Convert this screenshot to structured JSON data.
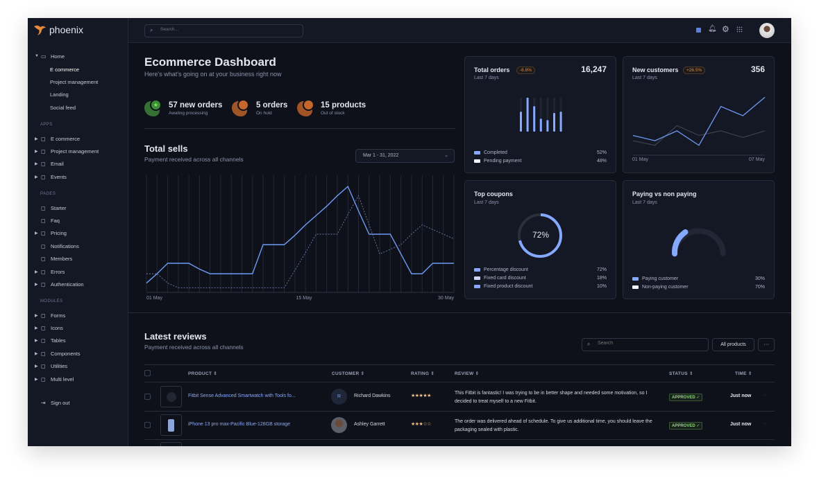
{
  "brand": {
    "name": "phoenix",
    "logo_color": "#e98a3b"
  },
  "topbar": {
    "search_placeholder": "Search...",
    "icons": [
      "theme-toggle-icon",
      "bell-icon",
      "gear-icon",
      "grid-icon",
      "avatar"
    ]
  },
  "sidebar": {
    "home": {
      "label": "Home",
      "children": [
        "E commerce",
        "Project management",
        "Landing",
        "Social feed"
      ]
    },
    "sections": [
      {
        "title": "APPS",
        "items": [
          {
            "label": "E commerce",
            "icon": "cart-icon",
            "expandable": true
          },
          {
            "label": "Project management",
            "icon": "clipboard-icon",
            "expandable": true
          },
          {
            "label": "Email",
            "icon": "mail-icon",
            "expandable": true
          },
          {
            "label": "Events",
            "icon": "clipboard-icon",
            "expandable": true
          }
        ]
      },
      {
        "title": "PAGES",
        "items": [
          {
            "label": "Starter",
            "icon": "compass-icon",
            "expandable": false
          },
          {
            "label": "Faq",
            "icon": "help-icon",
            "expandable": false
          },
          {
            "label": "Pricing",
            "icon": "tag-icon",
            "expandable": true
          },
          {
            "label": "Notifications",
            "icon": "bell-icon",
            "expandable": false
          },
          {
            "label": "Members",
            "icon": "users-icon",
            "expandable": false
          },
          {
            "label": "Errors",
            "icon": "alert-icon",
            "expandable": true
          },
          {
            "label": "Authentication",
            "icon": "lock-icon",
            "expandable": true
          }
        ]
      },
      {
        "title": "MODULES",
        "items": [
          {
            "label": "Forms",
            "icon": "file-icon",
            "expandable": true
          },
          {
            "label": "Icons",
            "icon": "grid-icon",
            "expandable": true
          },
          {
            "label": "Tables",
            "icon": "columns-icon",
            "expandable": true
          },
          {
            "label": "Components",
            "icon": "package-icon",
            "expandable": true
          },
          {
            "label": "Utilities",
            "icon": "tool-icon",
            "expandable": true
          },
          {
            "label": "Multi level",
            "icon": "layers-icon",
            "expandable": true
          }
        ]
      }
    ],
    "sign_out": "Sign out"
  },
  "header": {
    "title": "Ecommerce Dashboard",
    "subtitle": "Here's what's going on at your business right now"
  },
  "stats": [
    {
      "value": "57 new orders",
      "label": "Awating processing",
      "color": "#3d8a3a"
    },
    {
      "value": "5 orders",
      "label": "On hold",
      "color": "#c5662a"
    },
    {
      "value": "15 products",
      "label": "Out of stock",
      "color": "#c5662a"
    }
  ],
  "total_sells": {
    "title": "Total sells",
    "subtitle": "Payment received across all channels",
    "date_range": "Mar 1 - 31, 2022"
  },
  "chart_data": [
    {
      "type": "line",
      "x": [
        1,
        2,
        3,
        4,
        5,
        6,
        7,
        8,
        9,
        10,
        11,
        12,
        13,
        14,
        15,
        16,
        17,
        18,
        19,
        20,
        21,
        22,
        23,
        24,
        25,
        26,
        27,
        28,
        29,
        30
      ],
      "x_tick_labels": [
        "01 May",
        "15 May",
        "30 May"
      ],
      "ylim": [
        0,
        100
      ],
      "grid": "vertical",
      "series": [
        {
          "style": "solid",
          "color": "#6e9cf5",
          "values": [
            8,
            16,
            25,
            25,
            25,
            20,
            16,
            16,
            16,
            16,
            16,
            41,
            41,
            41,
            49,
            58,
            66,
            74,
            83,
            91,
            70,
            50,
            50,
            50,
            33,
            16,
            16,
            25,
            25,
            25
          ]
        },
        {
          "style": "dashed",
          "color": "#6a7ea8",
          "values": [
            16,
            16,
            8,
            4,
            4,
            4,
            4,
            4,
            4,
            4,
            4,
            4,
            4,
            4,
            19,
            34,
            50,
            50,
            50,
            67,
            83,
            58,
            33,
            37,
            41,
            50,
            58,
            54,
            50,
            46
          ]
        }
      ]
    },
    {
      "type": "bar",
      "title": "Total orders",
      "values": [
        59,
        100,
        75,
        38,
        34,
        55,
        59
      ],
      "ylim": [
        0,
        100
      ]
    },
    {
      "type": "line",
      "title": "New customers",
      "x_tick_labels": [
        "01 May",
        "07 May"
      ],
      "ylim": [
        0,
        100
      ],
      "series": [
        {
          "color": "#6e9cf5",
          "values": [
            30,
            22,
            37,
            15,
            74,
            60,
            88
          ]
        },
        {
          "color": "#3a3f4c",
          "values": [
            22,
            15,
            45,
            30,
            37,
            27,
            37
          ]
        }
      ]
    },
    {
      "type": "pie",
      "title": "Top coupons",
      "center_label": "72%",
      "values": [
        72,
        18,
        10
      ]
    },
    {
      "type": "pie",
      "title": "Paying vs non paying",
      "values": [
        30,
        70
      ]
    }
  ],
  "cards": {
    "total_orders": {
      "title": "Total orders",
      "badge": "-6.8%",
      "value": "16,247",
      "period": "Last 7 days",
      "legend": [
        {
          "label": "Completed",
          "value": "52%",
          "color": "#85a9ff"
        },
        {
          "label": "Pending payment",
          "value": "48%",
          "color": "#eff2f6"
        }
      ]
    },
    "new_customers": {
      "title": "New customers",
      "badge": "+26.5%",
      "value": "356",
      "period": "Last 7 days",
      "x_start": "01 May",
      "x_end": "07 May"
    },
    "top_coupons": {
      "title": "Top coupons",
      "period": "Last 7 days",
      "center": "72%",
      "legend": [
        {
          "label": "Percentage discount",
          "value": "72%",
          "color": "#85a9ff"
        },
        {
          "label": "Fixed card discount",
          "value": "18%",
          "color": "#c9d6f5"
        },
        {
          "label": "Fixed product discount",
          "value": "10%",
          "color": "#85a9ff"
        }
      ]
    },
    "paying": {
      "title": "Paying vs non paying",
      "period": "Last 7 days",
      "legend": [
        {
          "label": "Paying customer",
          "value": "30%",
          "color": "#85a9ff"
        },
        {
          "label": "Non-paying customer",
          "value": "70%",
          "color": "#eff2f6"
        }
      ]
    }
  },
  "reviews": {
    "title": "Latest reviews",
    "subtitle": "Payment received across all channels",
    "search_placeholder": "Search",
    "filter_label": "All products",
    "more_label": "···",
    "columns": [
      "PRODUCT",
      "CUSTOMER",
      "RATING",
      "REVIEW",
      "STATUS",
      "TIME"
    ],
    "rows": [
      {
        "product": "Fitbit Sense Advanced Smartwatch with Tools fo...",
        "customer": "Richard Dawkins",
        "initial": "R",
        "rating": 5,
        "stars": "★★★★★",
        "review": "This Fitbit is fantastic! I was trying to be in better shape and needed some motivation, so I decided to treat myself to a new Fitbit.",
        "status": "APPROVED ✓",
        "time": "Just now"
      },
      {
        "product": "iPhone 13 pro max-Pacific Blue-128GB storage",
        "customer": "Ashley Garrett",
        "initial": "",
        "rating": 3,
        "stars": "★★★☆☆",
        "review": "The order was delivered ahead of schedule. To give us additional time, you should leave the packaging sealed with plastic.",
        "status": "APPROVED ✓",
        "time": "Just now"
      }
    ]
  }
}
